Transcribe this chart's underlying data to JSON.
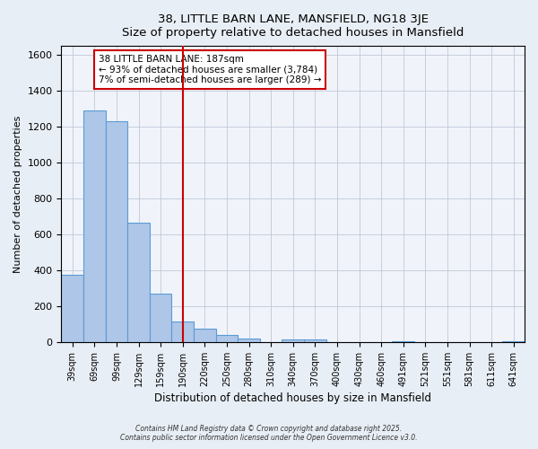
{
  "title": "38, LITTLE BARN LANE, MANSFIELD, NG18 3JE",
  "subtitle": "Size of property relative to detached houses in Mansfield",
  "xlabel": "Distribution of detached houses by size in Mansfield",
  "ylabel": "Number of detached properties",
  "bar_labels": [
    "39sqm",
    "69sqm",
    "99sqm",
    "129sqm",
    "159sqm",
    "190sqm",
    "220sqm",
    "250sqm",
    "280sqm",
    "310sqm",
    "340sqm",
    "370sqm",
    "400sqm",
    "430sqm",
    "460sqm",
    "491sqm",
    "521sqm",
    "551sqm",
    "581sqm",
    "611sqm",
    "641sqm"
  ],
  "bar_values": [
    375,
    1290,
    1230,
    665,
    270,
    115,
    75,
    40,
    20,
    0,
    15,
    15,
    0,
    0,
    0,
    5,
    0,
    0,
    0,
    0,
    5
  ],
  "bar_color": "#aec6e8",
  "bar_edge_color": "#5b9bd5",
  "vline_x": 5,
  "vline_color": "#cc0000",
  "annotation_line1": "38 LITTLE BARN LANE: 187sqm",
  "annotation_line2": "← 93% of detached houses are smaller (3,784)",
  "annotation_line3": "7% of semi-detached houses are larger (289) →",
  "annotation_box_edge": "#cc0000",
  "ylim": [
    0,
    1650
  ],
  "yticks": [
    0,
    200,
    400,
    600,
    800,
    1000,
    1200,
    1400,
    1600
  ],
  "background_color": "#e8eef5",
  "plot_bg_color": "#f0f4fa",
  "footer1": "Contains HM Land Registry data © Crown copyright and database right 2025.",
  "footer2": "Contains public sector information licensed under the Open Government Licence v3.0."
}
